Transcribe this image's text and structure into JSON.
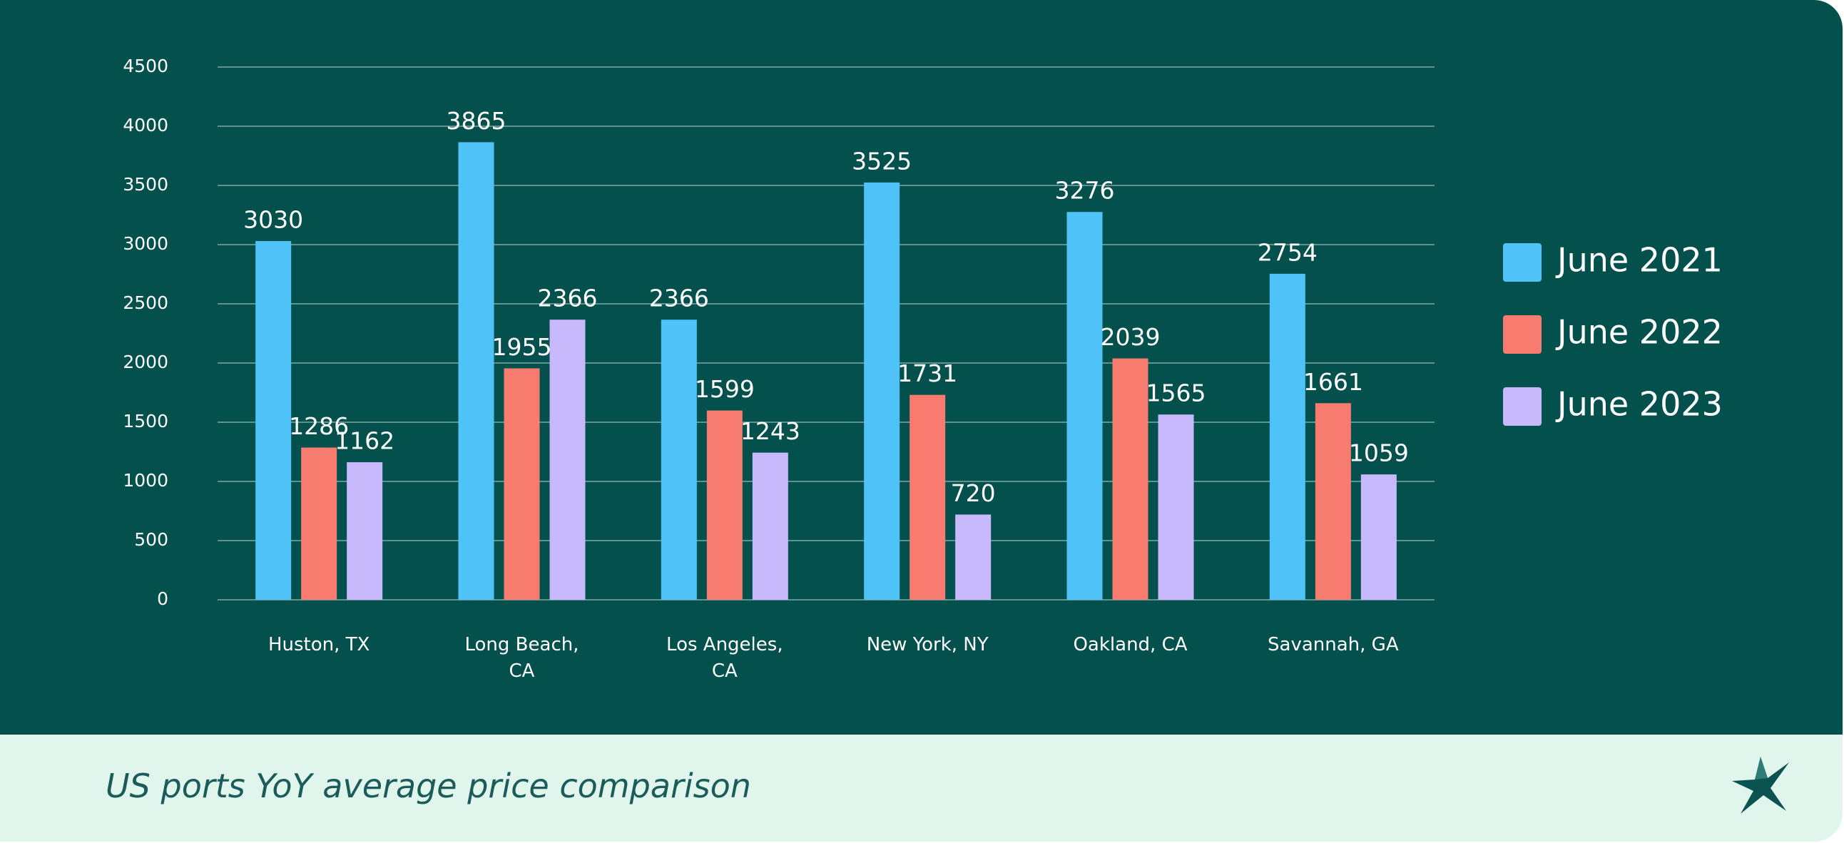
{
  "chart_data": {
    "type": "bar",
    "title": "US ports YoY average price comparison",
    "categories": [
      "Huston, TX",
      "Long Beach,\nCA",
      "Los Angeles,\nCA",
      "New York, NY",
      "Oakland, CA",
      "Savannah, GA"
    ],
    "series": [
      {
        "name": "June 2021",
        "color": "#4fc3f7",
        "values": [
          3030,
          3865,
          2366,
          3525,
          3276,
          2754
        ]
      },
      {
        "name": "June 2022",
        "color": "#f77b6e",
        "values": [
          1286,
          1955,
          1599,
          1731,
          2039,
          1661
        ]
      },
      {
        "name": "June 2023",
        "color": "#c8b9fd",
        "values": [
          1162,
          2366,
          1243,
          720,
          1565,
          1059
        ]
      }
    ],
    "ylim": [
      0,
      4500
    ],
    "yticks": [
      0,
      500,
      1000,
      1500,
      2000,
      2500,
      3000,
      3500,
      4000,
      4500
    ],
    "grid": true,
    "legend": "right"
  }
}
